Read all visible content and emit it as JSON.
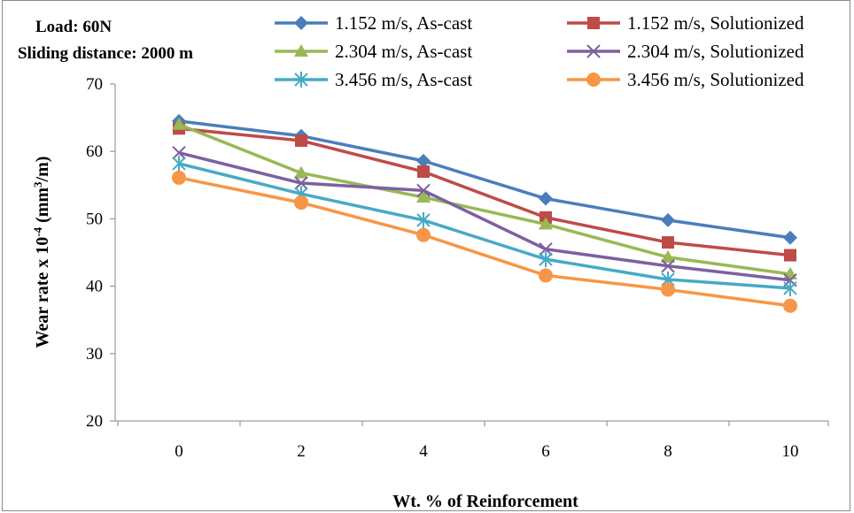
{
  "chart_data": {
    "type": "line",
    "title": "",
    "annotations": [
      "Load: 60N",
      "Sliding distance: 2000 m"
    ],
    "xlabel": "Wt. % of  Reinforcement",
    "ylabel": {
      "prefix": "Wear rate x 10",
      "exponent": "-4",
      "unit_open": " (mm",
      "unit_exp": "3",
      "unit_close": "/m)"
    },
    "x": [
      0,
      2,
      4,
      6,
      8,
      10
    ],
    "x_tick_labels": [
      "0",
      "2",
      "4",
      "6",
      "8",
      "10"
    ],
    "ylim": [
      20,
      70
    ],
    "y_ticks": [
      20,
      30,
      40,
      50,
      60,
      70
    ],
    "grid": false,
    "legend_position": "top",
    "series": [
      {
        "name": "1.152 m/s, As-cast",
        "color": "#4a7ebb",
        "marker": "diamond",
        "values": [
          64.5,
          62.3,
          58.6,
          53.0,
          49.8,
          47.2
        ]
      },
      {
        "name": "1.152 m/s, Solutionized",
        "color": "#be4b48",
        "marker": "square",
        "values": [
          63.4,
          61.6,
          57.0,
          50.2,
          46.5,
          44.6
        ]
      },
      {
        "name": "2.304 m/s, As-cast",
        "color": "#98b954",
        "marker": "triangle",
        "values": [
          64.0,
          56.8,
          53.2,
          49.2,
          44.3,
          41.8
        ]
      },
      {
        "name": "2.304 m/s, Solutionized",
        "color": "#7d60a0",
        "marker": "x",
        "values": [
          59.8,
          55.3,
          54.2,
          45.5,
          43.0,
          40.9
        ]
      },
      {
        "name": "3.456 m/s, As-cast",
        "color": "#46aac5",
        "marker": "star",
        "values": [
          58.2,
          53.7,
          49.8,
          44.0,
          41.0,
          39.7
        ]
      },
      {
        "name": "3.456 m/s, Solutionized",
        "color": "#f79646",
        "marker": "circle",
        "values": [
          56.1,
          52.4,
          47.6,
          41.6,
          39.5,
          37.1
        ]
      }
    ]
  }
}
